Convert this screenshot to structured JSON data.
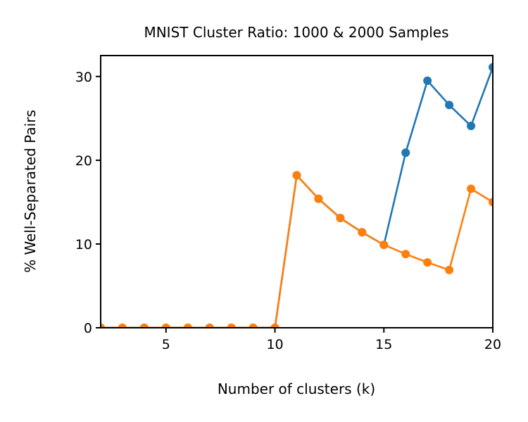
{
  "chart_data": {
    "type": "line",
    "title": "MNIST Cluster Ratio: 1000 & 2000 Samples",
    "xlabel": "Number of clusters (k)",
    "ylabel": "% Well-Separated Pairs",
    "xlim": [
      2,
      20
    ],
    "ylim": [
      0,
      32.5
    ],
    "xticks": [
      5,
      10,
      15,
      20
    ],
    "yticks": [
      0,
      10,
      20,
      30
    ],
    "grid": false,
    "x": [
      2,
      3,
      4,
      5,
      6,
      7,
      8,
      9,
      10,
      11,
      12,
      13,
      14,
      15,
      16,
      17,
      18,
      19,
      20
    ],
    "series": [
      {
        "color": "#1f77b4",
        "values": [
          0,
          0,
          0,
          0,
          0,
          0,
          0,
          0,
          0,
          18.2,
          15.4,
          13.1,
          11.4,
          9.9,
          20.9,
          29.5,
          26.6,
          24.1,
          31.1
        ]
      },
      {
        "color": "#ff7f0e",
        "values": [
          0,
          0,
          0,
          0,
          0,
          0,
          0,
          0,
          0,
          18.2,
          15.4,
          13.1,
          11.4,
          9.9,
          8.8,
          7.8,
          6.9,
          16.6,
          15.0
        ]
      }
    ]
  }
}
